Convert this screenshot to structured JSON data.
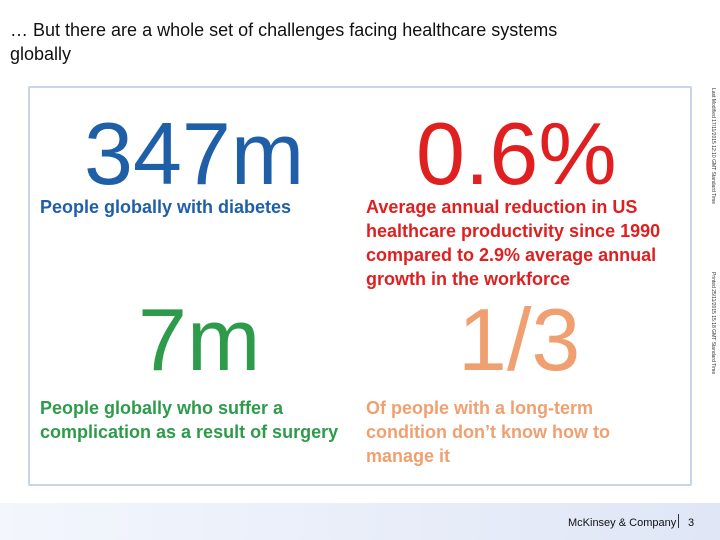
{
  "slide": {
    "title": "… But there are a whole set of challenges facing healthcare systems globally",
    "stats": [
      {
        "value": "347m",
        "color": "#1f5fa8",
        "description": "People globally with diabetes"
      },
      {
        "value": "0.6%",
        "color": "#e02020",
        "description": "Average annual reduction in US healthcare productivity since 1990 compared to 2.9% average annual growth in the workforce"
      },
      {
        "value": "7m",
        "color": "#2e9b4a",
        "description": "People globally who suffer a complication as a result of surgery"
      },
      {
        "value": "1/3",
        "color": "#f0a070",
        "description": "Of people with a long-term condition don’t know how to manage it"
      }
    ],
    "side_notes": [
      "Last Modified 17/11/2015 12:10 GMT Standard Time",
      "Printed 25/11/2015 15:18 GMT Standard Time"
    ],
    "footer": {
      "brand": "McKinsey & Company",
      "page_number": "3"
    }
  }
}
